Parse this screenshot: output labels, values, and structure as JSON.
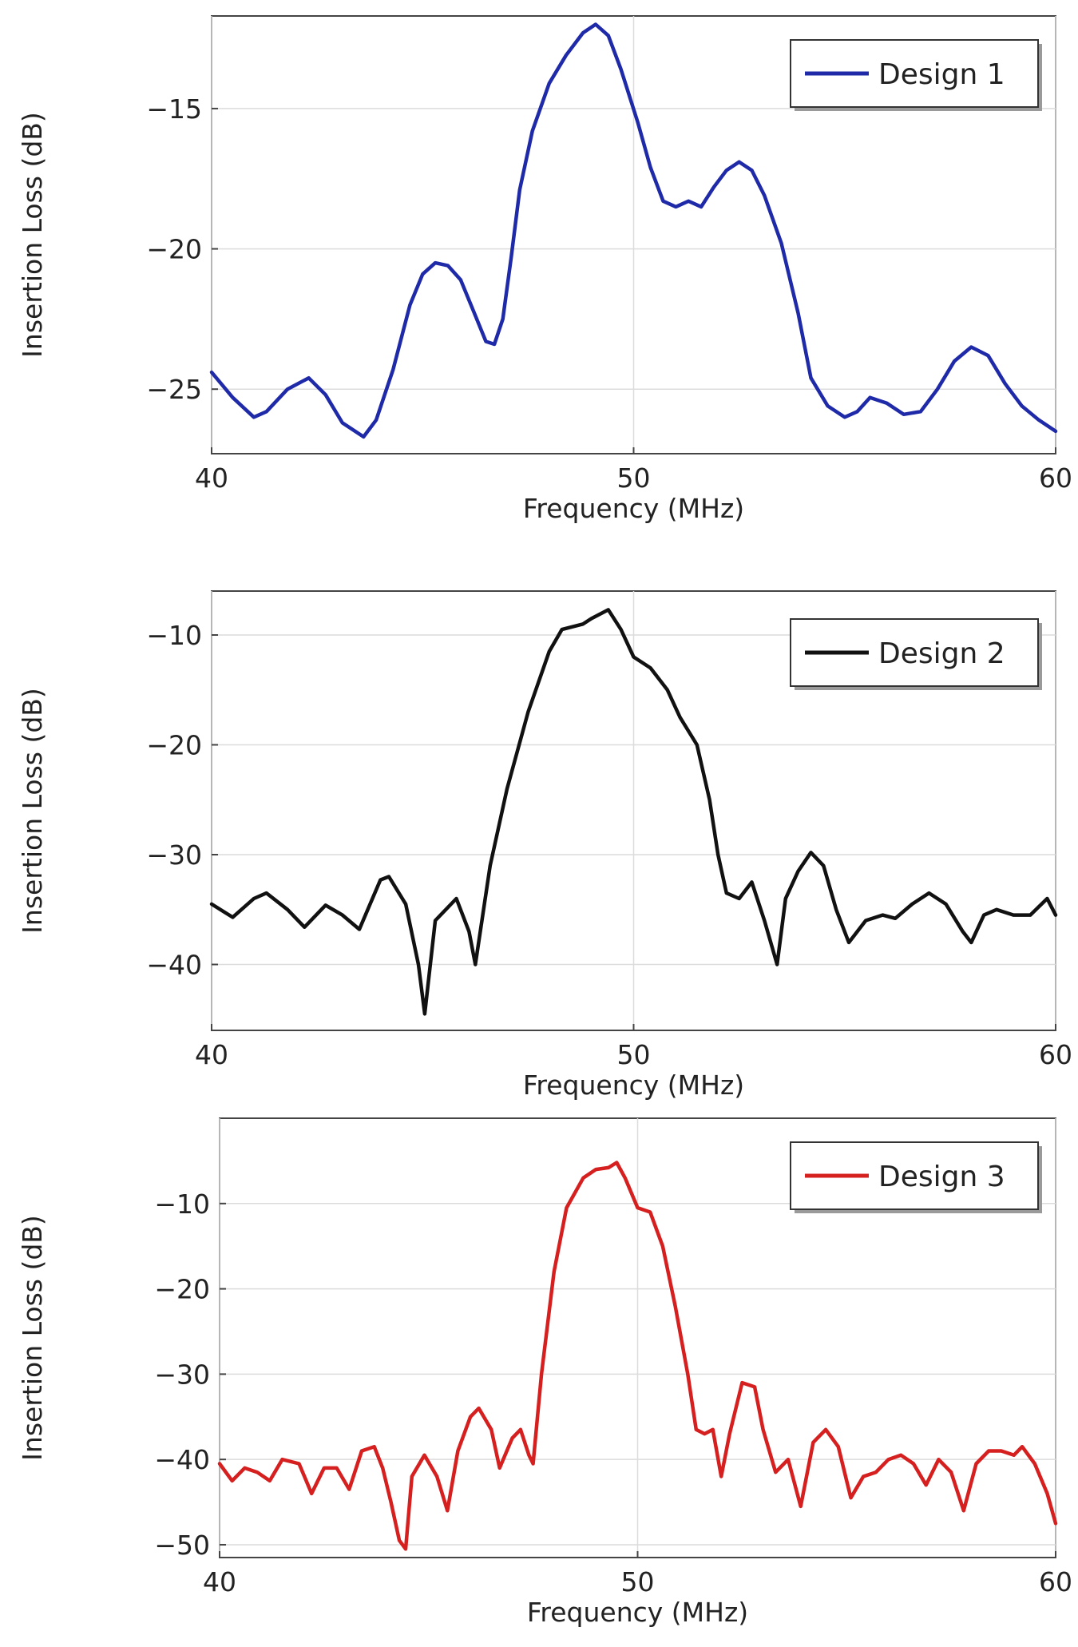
{
  "chart_data": [
    {
      "type": "line",
      "xlabel": "Frequency (MHz)",
      "ylabel": "Insertion Loss  (dB)",
      "xlim": [
        40,
        60
      ],
      "ylim": [
        -27.3,
        -11.7
      ],
      "xticks": [
        40,
        50,
        60
      ],
      "yticks": [
        -15,
        -20,
        -25
      ],
      "xtick_labels": [
        "40",
        "50",
        "60"
      ],
      "ytick_labels": [
        "−15",
        "−20",
        "−25"
      ],
      "grid": true,
      "legend_position": "top-right",
      "series": [
        {
          "name": "Design 1",
          "color": "#1f2aa8",
          "x": [
            40.0,
            40.5,
            41.0,
            41.3,
            41.8,
            42.3,
            42.7,
            43.1,
            43.6,
            43.9,
            44.3,
            44.7,
            45.0,
            45.3,
            45.6,
            45.9,
            46.2,
            46.5,
            46.7,
            46.9,
            47.1,
            47.3,
            47.6,
            48.0,
            48.4,
            48.8,
            49.1,
            49.4,
            49.7,
            50.1,
            50.4,
            50.7,
            51.0,
            51.3,
            51.6,
            51.9,
            52.2,
            52.5,
            52.8,
            53.1,
            53.5,
            53.9,
            54.2,
            54.6,
            55.0,
            55.3,
            55.6,
            56.0,
            56.4,
            56.8,
            57.2,
            57.6,
            58.0,
            58.4,
            58.8,
            59.2,
            59.6,
            60.0
          ],
          "y": [
            -24.4,
            -25.3,
            -26.0,
            -25.8,
            -25.0,
            -24.6,
            -25.2,
            -26.2,
            -26.7,
            -26.1,
            -24.3,
            -22.0,
            -20.9,
            -20.5,
            -20.6,
            -21.1,
            -22.2,
            -23.3,
            -23.4,
            -22.5,
            -20.3,
            -17.9,
            -15.8,
            -14.1,
            -13.1,
            -12.3,
            -12.0,
            -12.4,
            -13.6,
            -15.5,
            -17.1,
            -18.3,
            -18.5,
            -18.3,
            -18.5,
            -17.8,
            -17.2,
            -16.9,
            -17.2,
            -18.1,
            -19.8,
            -22.3,
            -24.6,
            -25.6,
            -26.0,
            -25.8,
            -25.3,
            -25.5,
            -25.9,
            -25.8,
            -25.0,
            -24.0,
            -23.5,
            -23.8,
            -24.8,
            -25.6,
            -26.1,
            -26.5
          ]
        }
      ]
    },
    {
      "type": "line",
      "xlabel": "Frequency (MHz)",
      "ylabel": "Insertion Loss  (dB)",
      "xlim": [
        40,
        60
      ],
      "ylim": [
        -46,
        -6
      ],
      "xticks": [
        40,
        50,
        60
      ],
      "yticks": [
        -10,
        -20,
        -30,
        -40
      ],
      "xtick_labels": [
        "40",
        "50",
        "60"
      ],
      "ytick_labels": [
        "−10",
        "−20",
        "−30",
        "−40"
      ],
      "grid": true,
      "legend_position": "top-right",
      "series": [
        {
          "name": "Design 2",
          "color": "#111111",
          "x": [
            40.0,
            40.5,
            41.0,
            41.3,
            41.8,
            42.2,
            42.7,
            43.1,
            43.5,
            44.0,
            44.2,
            44.6,
            44.9,
            45.05,
            45.3,
            45.8,
            46.1,
            46.25,
            46.6,
            47.0,
            47.5,
            48.0,
            48.3,
            48.8,
            49.0,
            49.4,
            49.7,
            50.0,
            50.4,
            50.8,
            51.1,
            51.5,
            51.8,
            52.0,
            52.2,
            52.5,
            52.8,
            53.1,
            53.4,
            53.6,
            53.9,
            54.2,
            54.5,
            54.8,
            55.1,
            55.5,
            55.9,
            56.2,
            56.6,
            57.0,
            57.4,
            57.8,
            58.0,
            58.3,
            58.6,
            59.0,
            59.4,
            59.8,
            60.0
          ],
          "y": [
            -34.5,
            -35.7,
            -34.0,
            -33.5,
            -35.0,
            -36.6,
            -34.6,
            -35.5,
            -36.8,
            -32.3,
            -32.0,
            -34.5,
            -40.0,
            -44.5,
            -36.0,
            -34.0,
            -37.0,
            -40.0,
            -31.0,
            -24.0,
            -17.0,
            -11.5,
            -9.5,
            -9.0,
            -8.5,
            -7.7,
            -9.5,
            -12.0,
            -13.0,
            -15.0,
            -17.5,
            -20.0,
            -25.0,
            -30.0,
            -33.5,
            -34.0,
            -32.5,
            -36.0,
            -40.0,
            -34.0,
            -31.5,
            -29.8,
            -31.0,
            -35.0,
            -38.0,
            -36.0,
            -35.5,
            -35.8,
            -34.5,
            -33.5,
            -34.5,
            -37.0,
            -38.0,
            -35.5,
            -35.0,
            -35.5,
            -35.5,
            -34.0,
            -35.5
          ]
        }
      ]
    },
    {
      "type": "line",
      "xlabel": "Frequency (MHz)",
      "ylabel": "Insertion Loss  (dB)",
      "xlim": [
        40,
        60
      ],
      "ylim": [
        -51.5,
        0
      ],
      "xticks": [
        40,
        50,
        60
      ],
      "yticks": [
        -10,
        -20,
        -30,
        -40,
        -50
      ],
      "xtick_labels": [
        "40",
        "50",
        "60"
      ],
      "ytick_labels": [
        "−10",
        "−20",
        "−30",
        "−40",
        "−50"
      ],
      "grid": true,
      "legend_position": "top-right",
      "series": [
        {
          "name": "Design 3",
          "color": "#d62020",
          "x": [
            40.0,
            40.3,
            40.6,
            40.9,
            41.2,
            41.5,
            41.9,
            42.2,
            42.5,
            42.8,
            43.1,
            43.4,
            43.7,
            43.9,
            44.1,
            44.3,
            44.45,
            44.6,
            44.9,
            45.2,
            45.45,
            45.7,
            46.0,
            46.2,
            46.5,
            46.7,
            47.0,
            47.2,
            47.4,
            47.5,
            47.7,
            48.0,
            48.3,
            48.7,
            49.0,
            49.3,
            49.5,
            49.7,
            50.0,
            50.3,
            50.6,
            50.9,
            51.2,
            51.4,
            51.6,
            51.8,
            52.0,
            52.2,
            52.5,
            52.8,
            53.0,
            53.3,
            53.6,
            53.9,
            54.2,
            54.5,
            54.8,
            55.1,
            55.4,
            55.7,
            56.0,
            56.3,
            56.6,
            56.9,
            57.2,
            57.5,
            57.8,
            58.1,
            58.4,
            58.7,
            59.0,
            59.2,
            59.5,
            59.8,
            60.0
          ],
          "y": [
            -40.5,
            -42.5,
            -41.0,
            -41.5,
            -42.5,
            -40.0,
            -40.5,
            -44.0,
            -41.0,
            -41.0,
            -43.5,
            -39.0,
            -38.5,
            -41.0,
            -45.0,
            -49.5,
            -50.5,
            -42.0,
            -39.5,
            -42.0,
            -46.0,
            -39.0,
            -35.0,
            -34.0,
            -36.5,
            -41.0,
            -37.5,
            -36.5,
            -39.5,
            -40.5,
            -30.0,
            -18.0,
            -10.5,
            -7.0,
            -6.0,
            -5.8,
            -5.2,
            -7.0,
            -10.5,
            -11.0,
            -15.0,
            -22.0,
            -30.0,
            -36.5,
            -37.0,
            -36.5,
            -42.0,
            -37.0,
            -31.0,
            -31.5,
            -36.5,
            -41.5,
            -40.0,
            -45.5,
            -38.0,
            -36.5,
            -38.5,
            -44.5,
            -42.0,
            -41.5,
            -40.0,
            -39.5,
            -40.5,
            -43.0,
            -40.0,
            -41.5,
            -46.0,
            -40.5,
            -39.0,
            -39.0,
            -39.5,
            -38.5,
            -40.5,
            -44.0,
            -47.5
          ]
        }
      ]
    }
  ]
}
